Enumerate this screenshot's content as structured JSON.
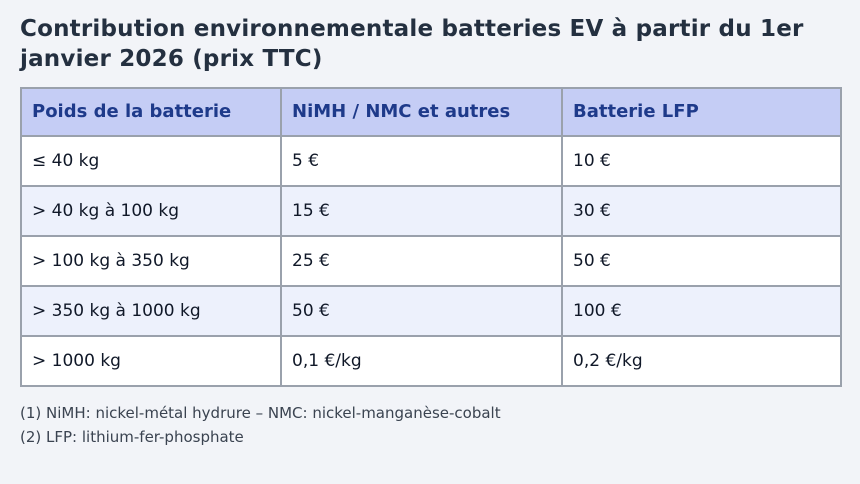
{
  "page": {
    "title": "Contribution environnementale batteries EV à partir du 1er janvier 2026 (prix TTC)"
  },
  "chart_data": {
    "type": "table",
    "title": "Contribution environnementale batteries EV à partir du 1er janvier 2026 (prix TTC)",
    "columns": [
      "Poids de la batterie",
      "NiMH / NMC et autres",
      "Batterie LFP"
    ],
    "rows": [
      [
        "≤ 40 kg",
        "5 €",
        "10 €"
      ],
      [
        "> 40 kg à 100 kg",
        "15 €",
        "30 €"
      ],
      [
        "> 100 kg à 350 kg",
        "25 €",
        "50 €"
      ],
      [
        "> 350 kg à 1000 kg",
        "50 €",
        "100 €"
      ],
      [
        "> 1000 kg",
        "0,1 €/kg",
        "0,2 €/kg"
      ]
    ],
    "footnotes": [
      "(1) NiMH: nickel-métal hydrure – NMC: nickel-manganèse-cobalt",
      "(2) LFP: lithium-fer-phosphate"
    ]
  },
  "colors": {
    "page_background": "#f2f4f8",
    "title_text": "#243040",
    "header_background": "#c5cdf5",
    "header_text": "#1e3a8a",
    "row_background": "#ffffff",
    "row_alt_background": "#edf1fc",
    "cell_text": "#101828",
    "table_border": "#9aa1ac",
    "footnote_text": "#3a4350"
  }
}
